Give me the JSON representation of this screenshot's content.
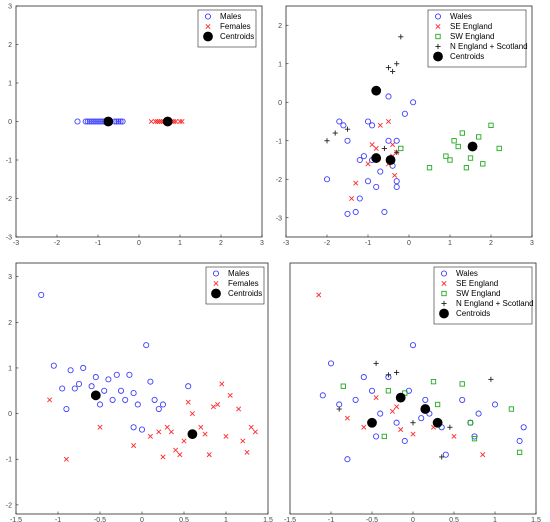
{
  "chart_data": [
    {
      "type": "scatter",
      "xlim": [
        -3,
        3
      ],
      "ylim": [
        -3,
        3
      ],
      "xticks": [
        "-3",
        "-2",
        "-1",
        "0",
        "1",
        "2",
        "3"
      ],
      "yticks": [
        "3",
        "2",
        "1",
        "0",
        "-1",
        "-2",
        "-3"
      ],
      "grid": false,
      "legend_position": "top-right",
      "series": [
        {
          "name": "Males",
          "marker": "o",
          "color": "#4040ff",
          "points": [
            [
              -1.5,
              0
            ],
            [
              -1.3,
              0
            ],
            [
              -1.25,
              0
            ],
            [
              -1.2,
              0
            ],
            [
              -1.15,
              0
            ],
            [
              -1.1,
              0
            ],
            [
              -1.05,
              0
            ],
            [
              -1.0,
              0
            ],
            [
              -0.95,
              0
            ],
            [
              -0.9,
              0
            ],
            [
              -0.85,
              0
            ],
            [
              -0.8,
              0
            ],
            [
              -0.7,
              0
            ],
            [
              -0.6,
              0
            ],
            [
              -0.55,
              0
            ],
            [
              -0.5,
              0
            ],
            [
              -0.45,
              0
            ],
            [
              -0.4,
              0
            ]
          ]
        },
        {
          "name": "Females",
          "marker": "x",
          "color": "#ff2a2a",
          "points": [
            [
              0.3,
              0
            ],
            [
              0.4,
              0
            ],
            [
              0.45,
              0
            ],
            [
              0.5,
              0
            ],
            [
              0.55,
              0
            ],
            [
              0.6,
              0
            ],
            [
              0.65,
              0
            ],
            [
              0.7,
              0
            ],
            [
              0.75,
              0
            ],
            [
              0.8,
              0
            ],
            [
              0.85,
              0
            ],
            [
              0.9,
              0
            ],
            [
              1.0,
              0
            ],
            [
              1.05,
              0
            ]
          ]
        },
        {
          "name": "Centroids",
          "marker": "dot",
          "color": "#000000",
          "points": [
            [
              -0.75,
              0
            ],
            [
              0.7,
              0
            ]
          ]
        }
      ]
    },
    {
      "type": "scatter",
      "xlim": [
        -3,
        3
      ],
      "ylim": [
        -3.5,
        2.5
      ],
      "xticks": [
        "-3",
        "-2",
        "-1",
        "0",
        "1",
        "2",
        "3"
      ],
      "yticks": [
        "2",
        "1",
        "0",
        "-1",
        "-2",
        "-3"
      ],
      "grid": false,
      "legend_position": "top-right",
      "series": [
        {
          "name": "Wales",
          "marker": "o",
          "color": "#4040ff",
          "points": [
            [
              -2.0,
              -2.0
            ],
            [
              -1.7,
              -0.5
            ],
            [
              -1.6,
              -0.6
            ],
            [
              -1.5,
              -1.0
            ],
            [
              -1.5,
              -2.9
            ],
            [
              -1.3,
              -2.85
            ],
            [
              -1.2,
              -1.5
            ],
            [
              -1.1,
              -1.4
            ],
            [
              -1.2,
              -2.5
            ],
            [
              -1.0,
              -0.5
            ],
            [
              -0.9,
              -0.6
            ],
            [
              -0.9,
              -1.5
            ],
            [
              -1.0,
              -2.05
            ],
            [
              -0.7,
              -1.8
            ],
            [
              -0.6,
              -2.85
            ],
            [
              -0.5,
              -1.0
            ],
            [
              -0.4,
              -1.65
            ],
            [
              -0.3,
              -2.05
            ],
            [
              -0.3,
              -2.2
            ],
            [
              -0.1,
              -0.3
            ],
            [
              -0.5,
              0.15
            ],
            [
              0.1,
              0.0
            ],
            [
              -0.3,
              -1.0
            ],
            [
              -0.8,
              -2.2
            ]
          ]
        },
        {
          "name": "SE England",
          "marker": "x",
          "color": "#ff2a2a",
          "points": [
            [
              -1.4,
              -2.5
            ],
            [
              -1.3,
              -2.1
            ],
            [
              -1.0,
              -1.6
            ],
            [
              -0.9,
              -1.1
            ],
            [
              -0.8,
              -1.2
            ],
            [
              -0.7,
              -0.6
            ],
            [
              -0.5,
              -1.6
            ],
            [
              -0.5,
              -0.5
            ],
            [
              -0.4,
              -1.1
            ],
            [
              -0.4,
              -1.4
            ],
            [
              -0.35,
              -1.9
            ],
            [
              -0.3,
              -1.3
            ]
          ]
        },
        {
          "name": "SW England",
          "marker": "square",
          "color": "#22aa22",
          "points": [
            [
              -0.2,
              -1.2
            ],
            [
              0.5,
              -1.7
            ],
            [
              0.9,
              -1.4
            ],
            [
              1.0,
              -1.5
            ],
            [
              1.1,
              -1.0
            ],
            [
              1.2,
              -1.15
            ],
            [
              1.3,
              -0.8
            ],
            [
              1.4,
              -1.7
            ],
            [
              1.5,
              -1.45
            ],
            [
              1.7,
              -0.9
            ],
            [
              1.8,
              -1.6
            ],
            [
              2.0,
              -0.6
            ],
            [
              2.2,
              -1.2
            ]
          ]
        },
        {
          "name": "N England + Scotland",
          "marker": "+",
          "color": "#222222",
          "points": [
            [
              -2.0,
              -1.0
            ],
            [
              -1.8,
              -0.8
            ],
            [
              -1.5,
              -0.7
            ],
            [
              -0.8,
              0.35
            ],
            [
              -0.5,
              0.9
            ],
            [
              -0.4,
              0.8
            ],
            [
              -0.3,
              1.0
            ],
            [
              -0.2,
              1.7
            ],
            [
              -0.3,
              -1.3
            ],
            [
              -0.6,
              -1.2
            ]
          ]
        },
        {
          "name": "Centroids",
          "marker": "dot",
          "color": "#000000",
          "points": [
            [
              -0.8,
              0.3
            ],
            [
              -0.8,
              -1.45
            ],
            [
              -0.45,
              -1.5
            ],
            [
              1.55,
              -1.15
            ]
          ]
        }
      ]
    },
    {
      "type": "scatter",
      "xlim": [
        -1.5,
        1.5
      ],
      "ylim": [
        -2.2,
        3.3
      ],
      "xticks": [
        "-1.5",
        "-1",
        "-0.5",
        "0",
        "0.5",
        "1",
        "1.5"
      ],
      "yticks": [
        "3",
        "2",
        "1",
        "0",
        "-1",
        "-2"
      ],
      "grid": false,
      "legend_position": "top-right",
      "series": [
        {
          "name": "Males",
          "marker": "o",
          "color": "#4040ff",
          "points": [
            [
              -1.2,
              2.6
            ],
            [
              -1.05,
              1.05
            ],
            [
              -0.95,
              0.55
            ],
            [
              -0.9,
              0.1
            ],
            [
              -0.85,
              0.95
            ],
            [
              -0.8,
              0.55
            ],
            [
              -0.75,
              0.65
            ],
            [
              -0.7,
              1.0
            ],
            [
              -0.6,
              0.6
            ],
            [
              -0.55,
              0.8
            ],
            [
              -0.5,
              0.2
            ],
            [
              -0.45,
              0.5
            ],
            [
              -0.4,
              0.75
            ],
            [
              -0.35,
              0.3
            ],
            [
              -0.3,
              0.85
            ],
            [
              -0.25,
              0.5
            ],
            [
              -0.2,
              0.3
            ],
            [
              -0.15,
              0.85
            ],
            [
              -0.1,
              0.45
            ],
            [
              -0.05,
              0.2
            ],
            [
              0.0,
              -0.35
            ],
            [
              0.05,
              1.5
            ],
            [
              0.1,
              0.7
            ],
            [
              0.15,
              0.3
            ],
            [
              0.2,
              0.1
            ],
            [
              0.25,
              0.2
            ],
            [
              0.55,
              0.6
            ],
            [
              -0.1,
              -0.3
            ]
          ]
        },
        {
          "name": "Females",
          "marker": "x",
          "color": "#ff2a2a",
          "points": [
            [
              -1.1,
              0.3
            ],
            [
              -0.9,
              -1.0
            ],
            [
              -0.5,
              -0.3
            ],
            [
              -0.1,
              -0.7
            ],
            [
              0.1,
              -0.5
            ],
            [
              0.2,
              -0.4
            ],
            [
              0.3,
              -0.3
            ],
            [
              0.35,
              -0.4
            ],
            [
              0.4,
              -0.8
            ],
            [
              0.45,
              -0.9
            ],
            [
              0.5,
              -0.6
            ],
            [
              0.55,
              0.25
            ],
            [
              0.6,
              0.0
            ],
            [
              0.7,
              -0.3
            ],
            [
              0.75,
              -0.45
            ],
            [
              0.8,
              -0.9
            ],
            [
              0.85,
              0.15
            ],
            [
              0.9,
              0.2
            ],
            [
              1.0,
              -0.5
            ],
            [
              1.05,
              0.4
            ],
            [
              1.15,
              0.1
            ],
            [
              1.2,
              -0.6
            ],
            [
              1.3,
              -0.3
            ],
            [
              1.35,
              -0.4
            ],
            [
              1.25,
              -0.85
            ],
            [
              0.95,
              0.65
            ],
            [
              0.25,
              -0.95
            ]
          ]
        },
        {
          "name": "Centroids",
          "marker": "dot",
          "color": "#000000",
          "points": [
            [
              -0.55,
              0.4
            ],
            [
              0.6,
              -0.45
            ]
          ]
        }
      ]
    },
    {
      "type": "scatter",
      "xlim": [
        -1.5,
        1.5
      ],
      "ylim": [
        -2.2,
        3.3
      ],
      "xticks": [
        "-1.5",
        "-1",
        "-0.5",
        "0",
        "0.5",
        "1",
        "1.5"
      ],
      "yticks": [],
      "grid": false,
      "legend_position": "top-right",
      "series": [
        {
          "name": "Wales",
          "marker": "o",
          "color": "#4040ff",
          "points": [
            [
              -1.1,
              0.4
            ],
            [
              -1.0,
              1.1
            ],
            [
              -0.9,
              0.2
            ],
            [
              -0.8,
              -1.0
            ],
            [
              -0.7,
              0.3
            ],
            [
              -0.6,
              0.8
            ],
            [
              -0.5,
              0.5
            ],
            [
              -0.4,
              0.0
            ],
            [
              -0.3,
              0.8
            ],
            [
              -0.2,
              -0.2
            ],
            [
              -0.1,
              -0.6
            ],
            [
              -0.05,
              0.5
            ],
            [
              0.0,
              1.5
            ],
            [
              0.1,
              -0.1
            ],
            [
              0.15,
              0.3
            ],
            [
              0.2,
              0.0
            ],
            [
              0.35,
              -0.3
            ],
            [
              0.4,
              -0.9
            ],
            [
              0.6,
              0.3
            ],
            [
              0.7,
              -0.2
            ],
            [
              0.75,
              -0.5
            ],
            [
              0.8,
              0.0
            ],
            [
              1.0,
              0.2
            ],
            [
              1.3,
              -0.6
            ],
            [
              1.35,
              -0.3
            ],
            [
              -0.45,
              -0.5
            ]
          ]
        },
        {
          "name": "SE England",
          "marker": "x",
          "color": "#ff2a2a",
          "points": [
            [
              -1.15,
              2.6
            ],
            [
              -0.8,
              -0.1
            ],
            [
              -0.6,
              -0.3
            ],
            [
              -0.45,
              0.35
            ],
            [
              -0.25,
              0.05
            ],
            [
              -0.15,
              -0.35
            ],
            [
              0.0,
              -0.45
            ],
            [
              0.25,
              -0.3
            ],
            [
              0.5,
              -0.5
            ],
            [
              0.85,
              -0.9
            ],
            [
              -0.2,
              0.15
            ]
          ]
        },
        {
          "name": "SW England",
          "marker": "square",
          "color": "#22aa22",
          "points": [
            [
              -0.85,
              0.6
            ],
            [
              -0.35,
              -0.5
            ],
            [
              -0.1,
              0.45
            ],
            [
              0.25,
              0.7
            ],
            [
              0.3,
              0.2
            ],
            [
              0.6,
              0.65
            ],
            [
              0.7,
              -0.2
            ],
            [
              0.75,
              -0.55
            ],
            [
              1.2,
              0.1
            ],
            [
              1.3,
              -0.85
            ],
            [
              -0.3,
              0.5
            ]
          ]
        },
        {
          "name": "N England + Scotland",
          "marker": "+",
          "color": "#222222",
          "points": [
            [
              -0.9,
              0.1
            ],
            [
              -0.45,
              1.1
            ],
            [
              -0.3,
              0.85
            ],
            [
              0.0,
              -0.2
            ],
            [
              0.35,
              -0.95
            ],
            [
              0.45,
              -0.3
            ],
            [
              0.95,
              0.75
            ],
            [
              -0.2,
              0.9
            ]
          ]
        },
        {
          "name": "Centroids",
          "marker": "dot",
          "color": "#000000",
          "points": [
            [
              -0.5,
              -0.2
            ],
            [
              -0.15,
              0.35
            ],
            [
              0.15,
              0.1
            ],
            [
              0.3,
              -0.2
            ]
          ]
        }
      ]
    }
  ]
}
